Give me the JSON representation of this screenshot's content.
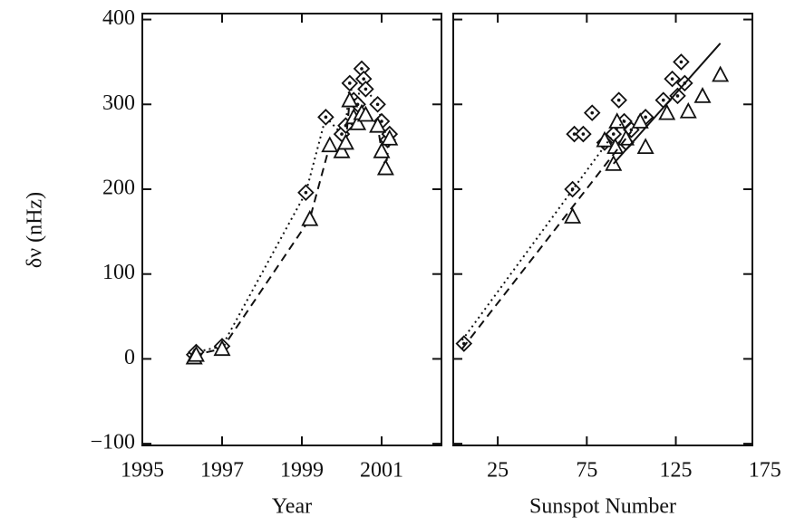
{
  "chart_data": [
    {
      "type": "scatter",
      "xlabel": "Year",
      "ylabel": "δν (nHz)",
      "xlim": [
        1995,
        2002.5
      ],
      "xticks": [
        1995,
        1997,
        1999,
        2001
      ],
      "ylim": [
        -102,
        407
      ],
      "yticks": [
        {
          "value": -100,
          "label": "−100"
        },
        0,
        100,
        200,
        300,
        400
      ],
      "series": [
        {
          "color": "#111111",
          "marker": "diamond",
          "line": "dotted",
          "x": [
            1996.3,
            1996.35,
            1997.0,
            1999.1,
            1999.6,
            2000.0,
            2000.1,
            2000.2,
            2000.3,
            2000.4,
            2000.5,
            2000.55,
            2000.6,
            2000.9,
            2001.0,
            2001.15,
            2001.2
          ],
          "values": [
            5,
            8,
            15,
            196,
            285,
            265,
            275,
            325,
            305,
            300,
            342,
            330,
            318,
            300,
            280,
            258,
            265
          ]
        },
        {
          "color": "#111111",
          "marker": "triangle",
          "line": "dashed",
          "x": [
            1996.3,
            1996.35,
            1997.0,
            1999.2,
            1999.7,
            2000.0,
            2000.1,
            2000.2,
            2000.3,
            2000.4,
            2000.5,
            2000.6,
            2000.9,
            2001.0,
            2001.1,
            2001.2
          ],
          "values": [
            2,
            5,
            12,
            165,
            252,
            245,
            255,
            305,
            285,
            278,
            290,
            288,
            275,
            245,
            225,
            260
          ]
        }
      ]
    },
    {
      "type": "scatter",
      "xlabel": "Sunspot Number",
      "xlim": [
        0,
        168
      ],
      "xticks": [
        25,
        75,
        125,
        175
      ],
      "ylim": [
        -102,
        407
      ],
      "yticks": [
        -100,
        0,
        100,
        200,
        300,
        400
      ],
      "series": [
        {
          "color": "#111111",
          "marker": "diamond",
          "line": null,
          "x": [
            6,
            67,
            68,
            73,
            78,
            85,
            90,
            93,
            96,
            97,
            100,
            108,
            118,
            123,
            126,
            128,
            130
          ],
          "values": [
            18,
            200,
            265,
            265,
            290,
            255,
            265,
            305,
            280,
            255,
            270,
            285,
            305,
            330,
            310,
            350,
            325
          ]
        },
        {
          "color": "#111111",
          "marker": "triangle",
          "line": null,
          "x": [
            67,
            85,
            90,
            91,
            92,
            97,
            105,
            108,
            120,
            132,
            140,
            150
          ],
          "values": [
            168,
            258,
            230,
            250,
            280,
            260,
            280,
            250,
            290,
            292,
            310,
            335
          ]
        },
        {
          "color": "#111111",
          "marker": null,
          "line": "dotted",
          "x": [
            5,
            97
          ],
          "values": [
            22,
            285
          ]
        },
        {
          "color": "#111111",
          "marker": null,
          "line": "dashed",
          "x": [
            5,
            100
          ],
          "values": [
            12,
            268
          ]
        },
        {
          "color": "#111111",
          "marker": null,
          "line": "solid",
          "x": [
            90,
            150
          ],
          "values": [
            230,
            372
          ]
        }
      ]
    }
  ]
}
